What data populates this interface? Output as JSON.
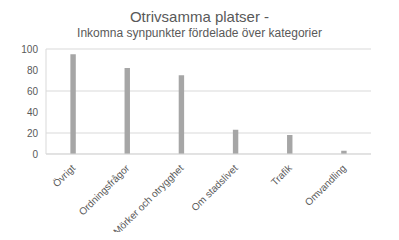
{
  "chart_data": {
    "type": "bar",
    "title": "Otrivsamma platser -",
    "subtitle": "Inkomna synpunkter fördelade över kategorier",
    "categories": [
      "Övrigt",
      "Ordningsfrågor",
      "Mörker och otrygghet",
      "Om stadslivet",
      "Trafik",
      "Omvandling"
    ],
    "values": [
      95,
      82,
      75,
      23,
      18,
      3
    ],
    "color": "#a6a6a6",
    "ylim": [
      0,
      100
    ],
    "yticks": [
      0,
      20,
      40,
      60,
      80,
      100
    ],
    "grid": true
  }
}
